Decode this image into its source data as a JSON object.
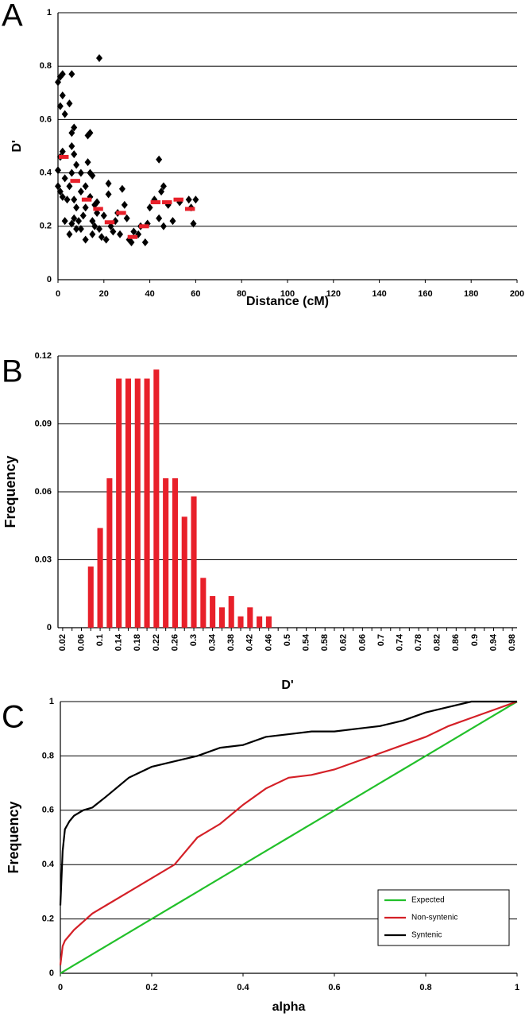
{
  "chart_data": [
    {
      "type": "scatter",
      "panel": "A",
      "xlabel": "Distance (cM)",
      "ylabel": "D'",
      "xlim": [
        0,
        200
      ],
      "xticks": [
        0,
        20,
        40,
        60,
        80,
        100,
        120,
        140,
        160,
        180,
        200
      ],
      "ylim": [
        0,
        1
      ],
      "yticks": [
        0,
        0.2,
        0.4,
        0.6,
        0.8,
        1
      ],
      "grid": true,
      "color": "#000000",
      "x": [
        0,
        1,
        2,
        1,
        2,
        3,
        5,
        0,
        1,
        2,
        0,
        1,
        2,
        3,
        4,
        5,
        5,
        6,
        6,
        7,
        6,
        7,
        8,
        6,
        7,
        8,
        7,
        6,
        8,
        9,
        10,
        10,
        11,
        12,
        12,
        13,
        14,
        13,
        14,
        15,
        14,
        15,
        16,
        15,
        17,
        18,
        17,
        18,
        19,
        20,
        21,
        22,
        22,
        23,
        24,
        25,
        26,
        27,
        28,
        29,
        30,
        31,
        32,
        33,
        35,
        36,
        38,
        39,
        40,
        42,
        44,
        45,
        46,
        44,
        46,
        48,
        50,
        53,
        57,
        58,
        59,
        60,
        12,
        3,
        10,
        16
      ],
      "y": [
        0.74,
        0.76,
        0.77,
        0.65,
        0.69,
        0.62,
        0.66,
        0.41,
        0.46,
        0.48,
        0.35,
        0.33,
        0.31,
        0.38,
        0.3,
        0.35,
        0.17,
        0.77,
        0.55,
        0.57,
        0.5,
        0.47,
        0.43,
        0.4,
        0.3,
        0.27,
        0.23,
        0.21,
        0.19,
        0.22,
        0.4,
        0.33,
        0.24,
        0.15,
        0.27,
        0.54,
        0.55,
        0.44,
        0.4,
        0.39,
        0.31,
        0.22,
        0.2,
        0.17,
        0.25,
        0.83,
        0.29,
        0.19,
        0.16,
        0.24,
        0.15,
        0.36,
        0.32,
        0.2,
        0.18,
        0.22,
        0.25,
        0.17,
        0.34,
        0.28,
        0.23,
        0.15,
        0.14,
        0.18,
        0.17,
        0.2,
        0.14,
        0.21,
        0.27,
        0.3,
        0.45,
        0.33,
        0.35,
        0.23,
        0.2,
        0.28,
        0.22,
        0.29,
        0.3,
        0.27,
        0.21,
        0.3,
        0.35,
        0.22,
        0.19,
        0.28
      ],
      "bin_edges": [
        0,
        5,
        10,
        15,
        20,
        25,
        30,
        35,
        40,
        45,
        50,
        55,
        60
      ],
      "bin_means": [
        0.46,
        0.37,
        0.3,
        0.265,
        0.215,
        0.25,
        0.16,
        0.2,
        0.29,
        0.29,
        0.3,
        0.265
      ],
      "bin_color": "#e8202a"
    },
    {
      "type": "bar",
      "panel": "B",
      "xlabel": "D'",
      "ylabel": "Frequency",
      "color": "#e8202a",
      "ylim": [
        0,
        0.12
      ],
      "yticks": [
        0,
        0.03,
        0.06,
        0.09,
        0.12
      ],
      "grid": true,
      "categories": [
        "0.02",
        null,
        "0.06",
        null,
        "0.1",
        null,
        "0.14",
        null,
        "0.18",
        null,
        "0.22",
        null,
        "0.26",
        null,
        "0.3",
        null,
        "0.34",
        null,
        "0.38",
        null,
        "0.42",
        null,
        "0.46",
        null,
        "0.5",
        null,
        "0.54",
        null,
        "0.58",
        null,
        "0.62",
        null,
        "0.66",
        null,
        "0.7",
        null,
        "0.74",
        null,
        "0.78",
        null,
        "0.82",
        null,
        "0.86",
        null,
        "0.9",
        null,
        "0.94",
        null,
        "0.98"
      ],
      "values": [
        0,
        0,
        0,
        0.027,
        0.044,
        0.066,
        0.11,
        0.11,
        0.11,
        0.11,
        0.114,
        0.066,
        0.066,
        0.049,
        0.058,
        0.022,
        0.014,
        0.009,
        0.014,
        0.005,
        0.009,
        0.005,
        0.005,
        0,
        0,
        0,
        0,
        0,
        0,
        0,
        0,
        0,
        0,
        0,
        0,
        0,
        0,
        0,
        0,
        0,
        0,
        0,
        0,
        0,
        0,
        0,
        0,
        0,
        0
      ]
    },
    {
      "type": "line",
      "panel": "C",
      "xlabel": "alpha",
      "ylabel": "Frequency",
      "xlim": [
        0,
        1
      ],
      "xticks": [
        0,
        0.2,
        0.4,
        0.6,
        0.8,
        1
      ],
      "ylim": [
        0,
        1
      ],
      "yticks": [
        0,
        0.2,
        0.4,
        0.6,
        0.8,
        1
      ],
      "grid": true,
      "legend": "lower right",
      "x": [
        0,
        0.005,
        0.01,
        0.02,
        0.03,
        0.05,
        0.07,
        0.1,
        0.15,
        0.2,
        0.25,
        0.3,
        0.35,
        0.4,
        0.45,
        0.5,
        0.55,
        0.6,
        0.65,
        0.7,
        0.75,
        0.8,
        0.85,
        0.9,
        0.95,
        1
      ],
      "series": [
        {
          "name": "Expected",
          "color": "#22c02a",
          "values": [
            0,
            0.005,
            0.01,
            0.02,
            0.03,
            0.05,
            0.07,
            0.1,
            0.15,
            0.2,
            0.25,
            0.3,
            0.35,
            0.4,
            0.45,
            0.5,
            0.55,
            0.6,
            0.65,
            0.7,
            0.75,
            0.8,
            0.85,
            0.9,
            0.95,
            1
          ]
        },
        {
          "name": "Non-syntenic",
          "color": "#d42027",
          "values": [
            0.03,
            0.1,
            0.12,
            0.14,
            0.16,
            0.19,
            0.22,
            0.25,
            0.3,
            0.35,
            0.4,
            0.5,
            0.55,
            0.62,
            0.68,
            0.72,
            0.73,
            0.75,
            0.78,
            0.81,
            0.84,
            0.87,
            0.91,
            0.94,
            0.97,
            1
          ]
        },
        {
          "name": "Syntenic",
          "color": "#000000",
          "values": [
            0.25,
            0.45,
            0.53,
            0.56,
            0.58,
            0.6,
            0.61,
            0.65,
            0.72,
            0.76,
            0.78,
            0.8,
            0.83,
            0.84,
            0.87,
            0.88,
            0.89,
            0.89,
            0.9,
            0.91,
            0.93,
            0.96,
            0.98,
            1,
            1,
            1
          ]
        }
      ]
    }
  ]
}
